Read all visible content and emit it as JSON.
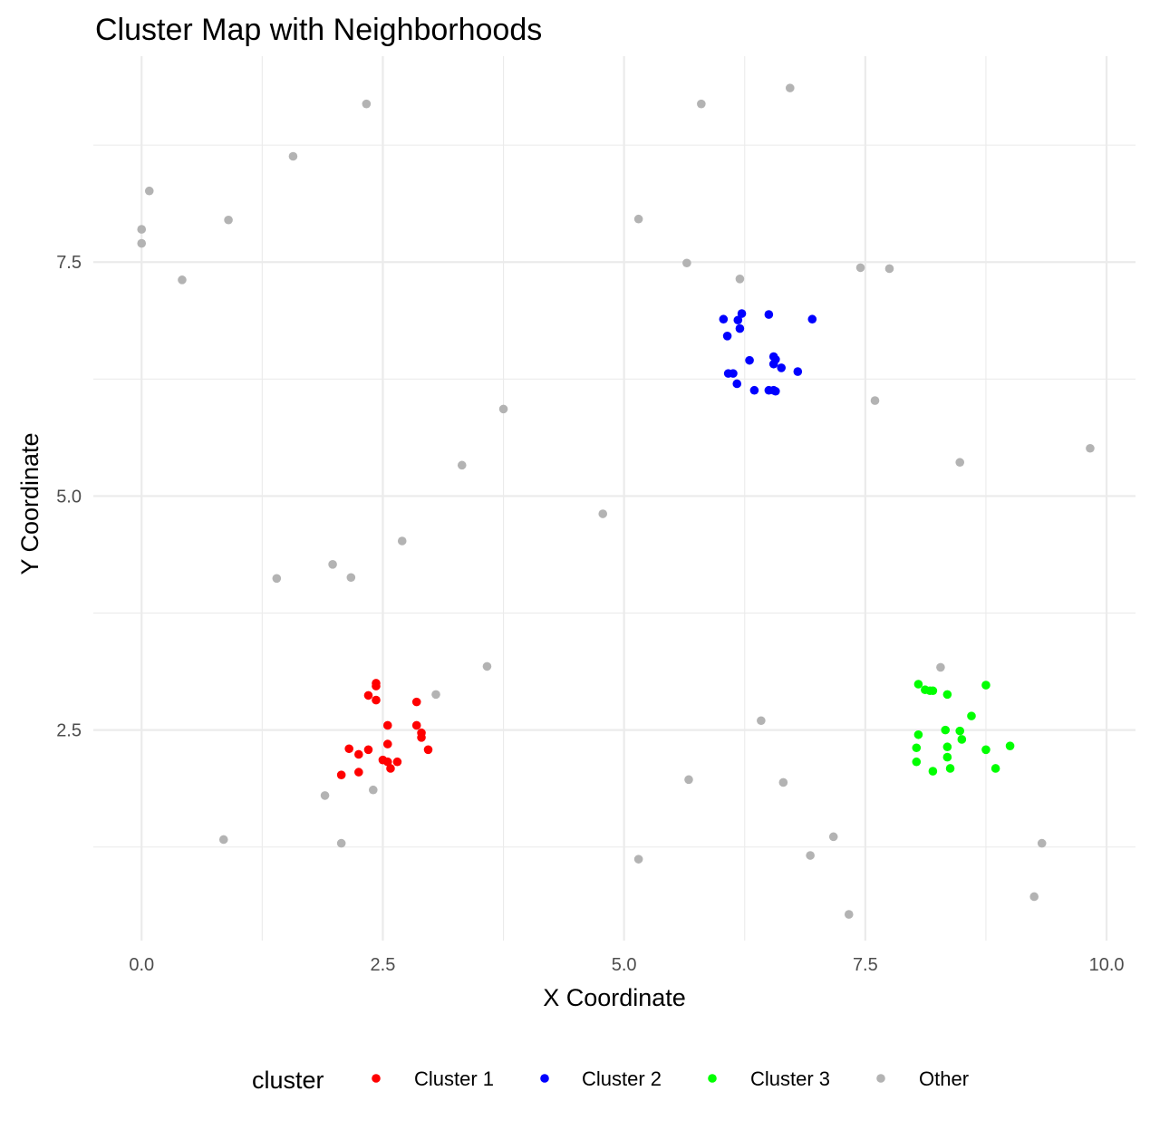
{
  "chart_data": {
    "type": "scatter",
    "title": "Cluster Map with Neighborhoods",
    "xlabel": "X Coordinate",
    "ylabel": "Y Coordinate",
    "xlim": [
      -0.5,
      10.3
    ],
    "ylim": [
      0.25,
      9.7
    ],
    "x_ticks": [
      0.0,
      2.5,
      5.0,
      7.5,
      10.0
    ],
    "x_tick_labels": [
      "0.0",
      "2.5",
      "5.0",
      "7.5",
      "10.0"
    ],
    "y_ticks": [
      2.5,
      5.0,
      7.5
    ],
    "y_tick_labels": [
      "2.5",
      "5.0",
      "7.5"
    ],
    "grid": true,
    "legend": {
      "title": "cluster",
      "placement": "bottom"
    },
    "series": [
      {
        "name": "Cluster 1",
        "color": "#ff0000",
        "points": [
          [
            2.43,
            3.0
          ],
          [
            2.43,
            2.97
          ],
          [
            2.35,
            2.87
          ],
          [
            2.43,
            2.82
          ],
          [
            2.85,
            2.8
          ],
          [
            2.55,
            2.55
          ],
          [
            2.85,
            2.55
          ],
          [
            2.9,
            2.47
          ],
          [
            2.9,
            2.42
          ],
          [
            2.55,
            2.35
          ],
          [
            2.15,
            2.3
          ],
          [
            2.35,
            2.29
          ],
          [
            2.97,
            2.29
          ],
          [
            2.25,
            2.24
          ],
          [
            2.5,
            2.18
          ],
          [
            2.55,
            2.16
          ],
          [
            2.65,
            2.16
          ],
          [
            2.58,
            2.09
          ],
          [
            2.25,
            2.05
          ],
          [
            2.07,
            2.02
          ]
        ]
      },
      {
        "name": "Cluster 2",
        "color": "#0000ff",
        "points": [
          [
            6.22,
            6.95
          ],
          [
            6.5,
            6.94
          ],
          [
            6.03,
            6.89
          ],
          [
            6.18,
            6.88
          ],
          [
            6.95,
            6.89
          ],
          [
            6.2,
            6.79
          ],
          [
            6.07,
            6.71
          ],
          [
            6.55,
            6.49
          ],
          [
            6.3,
            6.45
          ],
          [
            6.57,
            6.46
          ],
          [
            6.55,
            6.41
          ],
          [
            6.63,
            6.37
          ],
          [
            6.8,
            6.33
          ],
          [
            6.08,
            6.31
          ],
          [
            6.13,
            6.31
          ],
          [
            6.17,
            6.2
          ],
          [
            6.35,
            6.13
          ],
          [
            6.5,
            6.13
          ],
          [
            6.55,
            6.13
          ],
          [
            6.57,
            6.12
          ]
        ]
      },
      {
        "name": "Cluster 3",
        "color": "#00ff00",
        "points": [
          [
            8.05,
            2.99
          ],
          [
            8.75,
            2.98
          ],
          [
            8.12,
            2.93
          ],
          [
            8.17,
            2.92
          ],
          [
            8.2,
            2.92
          ],
          [
            8.35,
            2.88
          ],
          [
            8.6,
            2.65
          ],
          [
            8.33,
            2.5
          ],
          [
            8.48,
            2.49
          ],
          [
            8.05,
            2.45
          ],
          [
            8.5,
            2.4
          ],
          [
            9.0,
            2.33
          ],
          [
            8.35,
            2.32
          ],
          [
            8.03,
            2.31
          ],
          [
            8.75,
            2.29
          ],
          [
            8.35,
            2.21
          ],
          [
            8.03,
            2.16
          ],
          [
            8.38,
            2.09
          ],
          [
            8.85,
            2.09
          ],
          [
            8.2,
            2.06
          ]
        ]
      },
      {
        "name": "Other",
        "color": "#b3b3b3",
        "points": [
          [
            6.72,
            9.36
          ],
          [
            2.33,
            9.19
          ],
          [
            5.8,
            9.19
          ],
          [
            1.57,
            8.63
          ],
          [
            0.08,
            8.26
          ],
          [
            0.0,
            7.85
          ],
          [
            0.9,
            7.95
          ],
          [
            5.15,
            7.96
          ],
          [
            0.0,
            7.7
          ],
          [
            5.65,
            7.49
          ],
          [
            7.45,
            7.44
          ],
          [
            7.75,
            7.43
          ],
          [
            0.42,
            7.31
          ],
          [
            6.2,
            7.32
          ],
          [
            7.6,
            6.02
          ],
          [
            3.75,
            5.93
          ],
          [
            9.83,
            5.51
          ],
          [
            8.48,
            5.36
          ],
          [
            3.32,
            5.33
          ],
          [
            4.78,
            4.81
          ],
          [
            2.7,
            4.52
          ],
          [
            1.98,
            4.27
          ],
          [
            1.4,
            4.12
          ],
          [
            2.17,
            4.13
          ],
          [
            3.58,
            3.18
          ],
          [
            8.28,
            3.17
          ],
          [
            3.05,
            2.88
          ],
          [
            6.42,
            2.6
          ],
          [
            5.67,
            1.97
          ],
          [
            6.65,
            1.94
          ],
          [
            2.4,
            1.86
          ],
          [
            1.9,
            1.8
          ],
          [
            0.85,
            1.33
          ],
          [
            7.17,
            1.36
          ],
          [
            9.33,
            1.29
          ],
          [
            2.07,
            1.29
          ],
          [
            6.93,
            1.16
          ],
          [
            5.15,
            1.12
          ],
          [
            9.25,
            0.72
          ],
          [
            7.33,
            0.53
          ]
        ]
      }
    ]
  }
}
